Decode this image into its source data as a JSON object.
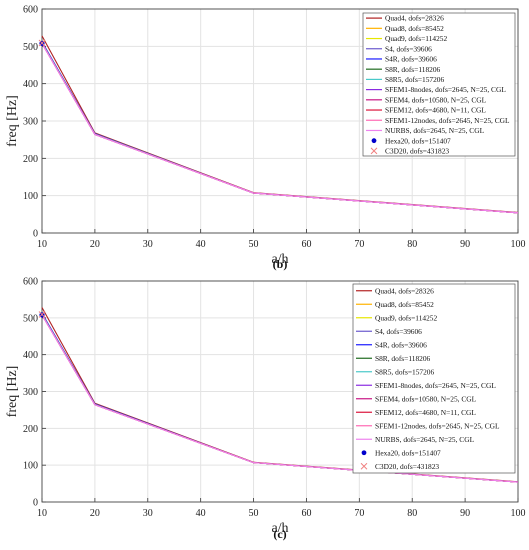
{
  "chart_data": [
    {
      "type": "line",
      "caption": "(b)",
      "xlabel": "a/h",
      "ylabel": "freq [Hz]",
      "xlim": [
        10,
        100
      ],
      "ylim": [
        0,
        600
      ],
      "xticks": [
        "10",
        "20",
        "30",
        "40",
        "50",
        "60",
        "70",
        "80",
        "90",
        "100"
      ],
      "yticks": [
        "0",
        "100",
        "200",
        "300",
        "400",
        "500",
        "600"
      ],
      "grid": true,
      "legend_position": "top-right",
      "x": [
        10,
        20,
        50,
        100
      ],
      "series": [
        {
          "name": "Quad4, dofs=28326",
          "color": "#b22222",
          "marker": "line",
          "values": [
            528,
            268,
            108,
            55
          ]
        },
        {
          "name": "Quad8, dofs=85452",
          "color": "#ffb300",
          "marker": "line",
          "values": [
            510,
            265,
            107,
            54
          ]
        },
        {
          "name": "Quad9, dofs=114252",
          "color": "#e6e600",
          "marker": "line",
          "values": [
            510,
            265,
            107,
            54
          ]
        },
        {
          "name": "S4, dofs=39606",
          "color": "#6a5acd",
          "marker": "line",
          "values": [
            512,
            266,
            107,
            54
          ]
        },
        {
          "name": "S4R, dofs=39606",
          "color": "#1a1aff",
          "marker": "line",
          "values": [
            512,
            266,
            107,
            54
          ]
        },
        {
          "name": "S8R, dofs=118206",
          "color": "#1e6b1e",
          "marker": "line",
          "values": [
            510,
            265,
            107,
            54
          ]
        },
        {
          "name": "S8R5, dofs=157206",
          "color": "#48c9c9",
          "marker": "line",
          "values": [
            510,
            265,
            107,
            54
          ]
        },
        {
          "name": "SFEM1-8nodes, dofs=2645, N=25, CGL",
          "color": "#8a2be2",
          "marker": "line",
          "values": [
            508,
            264,
            107,
            54
          ]
        },
        {
          "name": "SFEM4, dofs=10580, N=25, CGL",
          "color": "#c71585",
          "marker": "line",
          "values": [
            508,
            264,
            107,
            54
          ]
        },
        {
          "name": "SFEM12, dofs=4680, N=11, CGL",
          "color": "#dc143c",
          "marker": "line",
          "values": [
            508,
            264,
            107,
            54
          ]
        },
        {
          "name": "SFEM1-12nodes, dofs=2645, N=25, CGL",
          "color": "#ff69b4",
          "marker": "line",
          "values": [
            508,
            264,
            107,
            54
          ]
        },
        {
          "name": "NURBS, dofs=2645, N=25, CGL",
          "color": "#ee82ee",
          "marker": "line",
          "values": [
            508,
            264,
            107,
            54
          ]
        },
        {
          "name": "Hexa20, dofs=151407",
          "color": "#0000cc",
          "marker": "dot",
          "values": [
            508,
            null,
            null,
            null
          ]
        },
        {
          "name": "C3D20, dofs=431823",
          "color": "#f08080",
          "marker": "x",
          "values": [
            509,
            null,
            null,
            null
          ]
        }
      ]
    },
    {
      "type": "line",
      "caption": "(c)",
      "xlabel": "a/h",
      "ylabel": "freq [Hz]",
      "xlim": [
        10,
        100
      ],
      "ylim": [
        0,
        600
      ],
      "xticks": [
        "10",
        "20",
        "30",
        "40",
        "50",
        "60",
        "70",
        "80",
        "90",
        "100"
      ],
      "yticks": [
        "0",
        "100",
        "200",
        "300",
        "400",
        "500",
        "600"
      ],
      "grid": true,
      "legend_position": "top-right",
      "x": [
        10,
        20,
        50,
        100
      ],
      "series": [
        {
          "name": "Quad4, dofs=28326",
          "color": "#b22222",
          "marker": "line",
          "values": [
            528,
            268,
            108,
            55
          ]
        },
        {
          "name": "Quad8, dofs=85452",
          "color": "#ffb300",
          "marker": "line",
          "values": [
            510,
            265,
            107,
            54
          ]
        },
        {
          "name": "Quad9, dofs=114252",
          "color": "#e6e600",
          "marker": "line",
          "values": [
            510,
            265,
            107,
            54
          ]
        },
        {
          "name": "S4, dofs=39606",
          "color": "#6a5acd",
          "marker": "line",
          "values": [
            512,
            266,
            107,
            54
          ]
        },
        {
          "name": "S4R, dofs=39606",
          "color": "#1a1aff",
          "marker": "line",
          "values": [
            512,
            266,
            107,
            54
          ]
        },
        {
          "name": "S8R, dofs=118206",
          "color": "#1e6b1e",
          "marker": "line",
          "values": [
            510,
            265,
            107,
            54
          ]
        },
        {
          "name": "S8R5, dofs=157206",
          "color": "#48c9c9",
          "marker": "line",
          "values": [
            510,
            265,
            107,
            54
          ]
        },
        {
          "name": "SFEM1-8nodes, dofs=2645, N=25, CGL",
          "color": "#8a2be2",
          "marker": "line",
          "values": [
            508,
            264,
            107,
            54
          ]
        },
        {
          "name": "SFEM4, dofs=10580, N=25, CGL",
          "color": "#c71585",
          "marker": "line",
          "values": [
            508,
            264,
            107,
            54
          ]
        },
        {
          "name": "SFEM12, dofs=4680, N=11, CGL",
          "color": "#dc143c",
          "marker": "line",
          "values": [
            508,
            264,
            107,
            54
          ]
        },
        {
          "name": "SFEM1-12nodes, dofs=2645, N=25, CGL",
          "color": "#ff69b4",
          "marker": "line",
          "values": [
            508,
            264,
            107,
            54
          ]
        },
        {
          "name": "NURBS, dofs=2645, N=25, CGL",
          "color": "#ee82ee",
          "marker": "line",
          "values": [
            508,
            264,
            107,
            54
          ]
        },
        {
          "name": "Hexa20, dofs=151407",
          "color": "#0000cc",
          "marker": "dot",
          "values": [
            508,
            null,
            null,
            null
          ]
        },
        {
          "name": "C3D20, dofs=431823",
          "color": "#f08080",
          "marker": "x",
          "values": [
            509,
            null,
            null,
            null
          ]
        }
      ]
    }
  ]
}
